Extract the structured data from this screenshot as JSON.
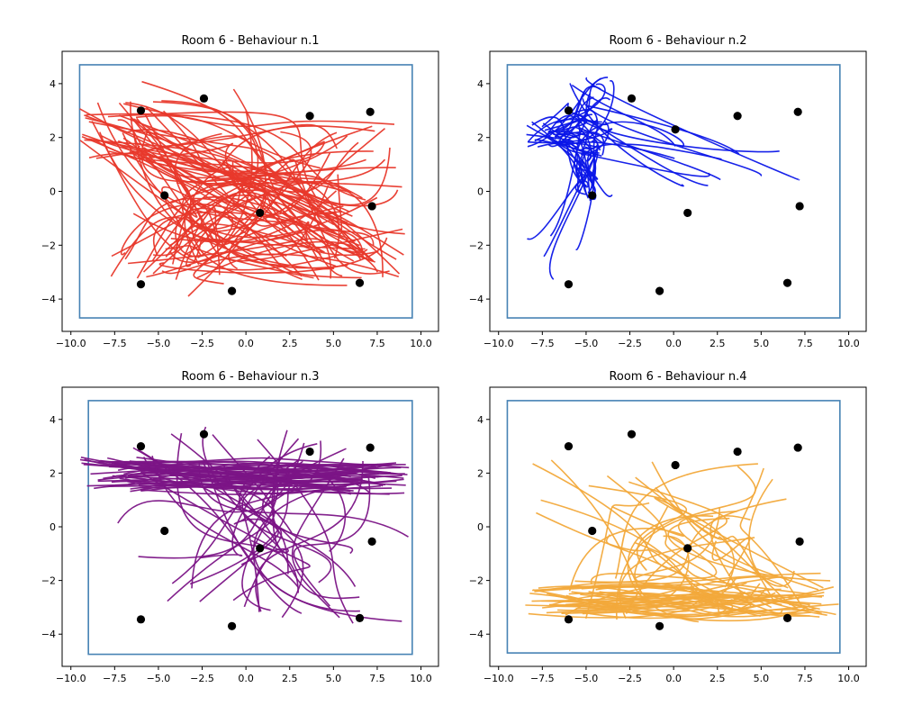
{
  "chart_data": [
    {
      "type": "line",
      "title": "Room 6 - Behaviour n.1",
      "xlim": [
        -10.5,
        11.0
      ],
      "ylim": [
        -5.2,
        5.2
      ],
      "xticks": [
        -10.0,
        -7.5,
        -5.0,
        -2.5,
        0.0,
        2.5,
        5.0,
        7.5,
        10.0
      ],
      "xtick_labels": [
        "−10.0",
        "−7.5",
        "−5.0",
        "−2.5",
        "0.0",
        "2.5",
        "5.0",
        "7.5",
        "10.0"
      ],
      "yticks": [
        -4,
        -2,
        0,
        2,
        4
      ],
      "ytick_labels": [
        "−4",
        "−2",
        "0",
        "2",
        "4"
      ],
      "grid": false,
      "room_boundary": {
        "x0": -9.5,
        "x1": 9.5,
        "y0": -4.7,
        "y1": 4.7,
        "color": "#4682b4"
      },
      "points": [
        [
          -6.0,
          3.0
        ],
        [
          -2.4,
          3.45
        ],
        [
          3.65,
          2.8
        ],
        [
          7.1,
          2.95
        ],
        [
          -4.65,
          -0.15
        ],
        [
          0.8,
          -0.8
        ],
        [
          7.2,
          -0.55
        ],
        [
          -6.0,
          -3.45
        ],
        [
          -0.8,
          -3.7
        ],
        [
          6.5,
          -3.4
        ]
      ],
      "series": [
        {
          "color": "#e8382b",
          "style": "spread",
          "count": 90,
          "seed": 11
        }
      ]
    },
    {
      "type": "line",
      "title": "Room 6 - Behaviour n.2",
      "xlim": [
        -10.5,
        11.0
      ],
      "ylim": [
        -5.2,
        5.2
      ],
      "xticks": [
        -10.0,
        -7.5,
        -5.0,
        -2.5,
        0.0,
        2.5,
        5.0,
        7.5,
        10.0
      ],
      "xtick_labels": [
        "−10.0",
        "−7.5",
        "−5.0",
        "−2.5",
        "0.0",
        "2.5",
        "5.0",
        "7.5",
        "10.0"
      ],
      "yticks": [
        -4,
        -2,
        0,
        2,
        4
      ],
      "ytick_labels": [
        "−4",
        "−2",
        "0",
        "2",
        "4"
      ],
      "grid": false,
      "room_boundary": {
        "x0": -9.5,
        "x1": 9.5,
        "y0": -4.7,
        "y1": 4.7,
        "color": "#4682b4"
      },
      "points": [
        [
          -6.0,
          3.0
        ],
        [
          -2.4,
          3.45
        ],
        [
          3.65,
          2.8
        ],
        [
          7.1,
          2.95
        ],
        [
          0.1,
          2.3
        ],
        [
          -4.65,
          -0.15
        ],
        [
          0.8,
          -0.8
        ],
        [
          7.2,
          -0.55
        ],
        [
          -6.0,
          -3.45
        ],
        [
          -0.8,
          -3.7
        ],
        [
          6.5,
          -3.4
        ]
      ],
      "series": [
        {
          "color": "#0b16e8",
          "style": "cluster",
          "count": 60,
          "seed": 23
        }
      ]
    },
    {
      "type": "line",
      "title": "Room 6 - Behaviour n.3",
      "xlim": [
        -10.5,
        11.0
      ],
      "ylim": [
        -5.2,
        5.2
      ],
      "xticks": [
        -10.0,
        -7.5,
        -5.0,
        -2.5,
        0.0,
        2.5,
        5.0,
        7.5,
        10.0
      ],
      "xtick_labels": [
        "−10.0",
        "−7.5",
        "−5.0",
        "−2.5",
        "0.0",
        "2.5",
        "5.0",
        "7.5",
        "10.0"
      ],
      "yticks": [
        -4,
        -2,
        0,
        2,
        4
      ],
      "ytick_labels": [
        "−4",
        "−2",
        "0",
        "2",
        "4"
      ],
      "grid": false,
      "room_boundary": {
        "x0": -9.0,
        "x1": 9.5,
        "y0": -4.75,
        "y1": 4.7,
        "color": "#4682b4"
      },
      "points": [
        [
          -6.0,
          3.0
        ],
        [
          -2.4,
          3.45
        ],
        [
          3.65,
          2.8
        ],
        [
          7.1,
          2.95
        ],
        [
          -4.65,
          -0.15
        ],
        [
          0.8,
          -0.8
        ],
        [
          7.2,
          -0.55
        ],
        [
          -6.0,
          -3.45
        ],
        [
          -0.8,
          -3.7
        ],
        [
          6.5,
          -3.4
        ]
      ],
      "series": [
        {
          "color": "#7b1486",
          "style": "band",
          "count": 80,
          "seed": 37
        }
      ]
    },
    {
      "type": "line",
      "title": "Room 6 - Behaviour n.4",
      "xlim": [
        -10.5,
        11.0
      ],
      "ylim": [
        -5.2,
        5.2
      ],
      "xticks": [
        -10.0,
        -7.5,
        -5.0,
        -2.5,
        0.0,
        2.5,
        5.0,
        7.5,
        10.0
      ],
      "xtick_labels": [
        "−10.0",
        "−7.5",
        "−5.0",
        "−2.5",
        "0.0",
        "2.5",
        "5.0",
        "7.5",
        "10.0"
      ],
      "yticks": [
        -4,
        -2,
        0,
        2,
        4
      ],
      "ytick_labels": [
        "−4",
        "−2",
        "0",
        "2",
        "4"
      ],
      "grid": false,
      "room_boundary": {
        "x0": -9.5,
        "x1": 9.5,
        "y0": -4.7,
        "y1": 4.7,
        "color": "#4682b4"
      },
      "points": [
        [
          -6.0,
          3.0
        ],
        [
          -2.4,
          3.45
        ],
        [
          3.65,
          2.8
        ],
        [
          7.1,
          2.95
        ],
        [
          0.1,
          2.3
        ],
        [
          -4.65,
          -0.15
        ],
        [
          0.8,
          -0.8
        ],
        [
          7.2,
          -0.55
        ],
        [
          -6.0,
          -3.45
        ],
        [
          -0.8,
          -3.7
        ],
        [
          6.5,
          -3.4
        ]
      ],
      "series": [
        {
          "color": "#f2a93b",
          "style": "lower",
          "count": 70,
          "seed": 53
        }
      ]
    }
  ]
}
